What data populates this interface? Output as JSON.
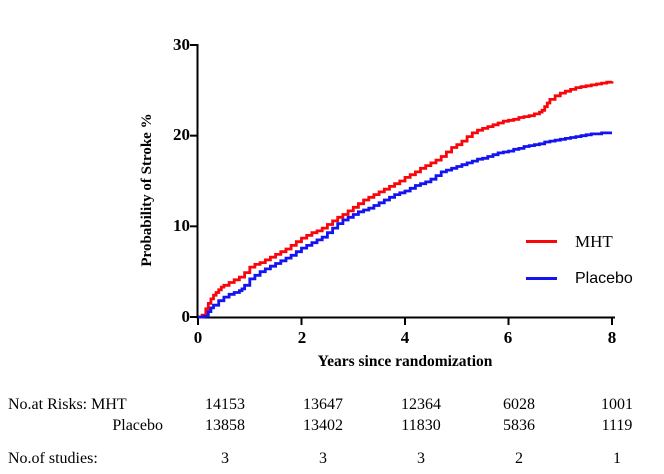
{
  "figure_background": "#FFFFFF",
  "axis_color": "#000000",
  "chart_data": {
    "type": "line",
    "subtype": "kaplan-meier-step",
    "title": "",
    "xlabel": "Years since randomization",
    "ylabel": "Probability of Stroke %",
    "xlim": [
      0,
      8
    ],
    "ylim": [
      0,
      30
    ],
    "grid": false,
    "legend_position": "right-middle",
    "xtick_labels": [
      "0",
      "2",
      "4",
      "6",
      "8"
    ],
    "ytick_labels": [
      "0",
      "10",
      "20",
      "30"
    ],
    "series": [
      {
        "name": "MHT",
        "color": "#FA050A",
        "points": [
          [
            0,
            0
          ],
          [
            0.08,
            0.2
          ],
          [
            0.15,
            0.9
          ],
          [
            0.2,
            1.5
          ],
          [
            0.25,
            2.0
          ],
          [
            0.3,
            2.4
          ],
          [
            0.35,
            2.7
          ],
          [
            0.4,
            3.0
          ],
          [
            0.45,
            3.3
          ],
          [
            0.5,
            3.5
          ],
          [
            0.6,
            3.8
          ],
          [
            0.7,
            4.1
          ],
          [
            0.8,
            4.4
          ],
          [
            0.9,
            4.9
          ],
          [
            1.0,
            5.5
          ],
          [
            1.1,
            5.8
          ],
          [
            1.2,
            6.0
          ],
          [
            1.3,
            6.3
          ],
          [
            1.4,
            6.6
          ],
          [
            1.5,
            6.9
          ],
          [
            1.6,
            7.2
          ],
          [
            1.7,
            7.5
          ],
          [
            1.8,
            7.9
          ],
          [
            1.9,
            8.3
          ],
          [
            2.0,
            8.7
          ],
          [
            2.1,
            9.0
          ],
          [
            2.2,
            9.3
          ],
          [
            2.3,
            9.5
          ],
          [
            2.4,
            9.8
          ],
          [
            2.5,
            10.2
          ],
          [
            2.6,
            10.6
          ],
          [
            2.7,
            11.0
          ],
          [
            2.8,
            11.3
          ],
          [
            2.9,
            11.7
          ],
          [
            3.0,
            12.1
          ],
          [
            3.1,
            12.5
          ],
          [
            3.2,
            12.9
          ],
          [
            3.3,
            13.2
          ],
          [
            3.4,
            13.5
          ],
          [
            3.5,
            13.8
          ],
          [
            3.6,
            14.1
          ],
          [
            3.7,
            14.4
          ],
          [
            3.8,
            14.7
          ],
          [
            3.9,
            15.0
          ],
          [
            4.0,
            15.4
          ],
          [
            4.1,
            15.7
          ],
          [
            4.2,
            16.0
          ],
          [
            4.3,
            16.4
          ],
          [
            4.4,
            16.7
          ],
          [
            4.5,
            17.0
          ],
          [
            4.6,
            17.3
          ],
          [
            4.7,
            17.7
          ],
          [
            4.8,
            18.2
          ],
          [
            4.9,
            18.7
          ],
          [
            5.0,
            19.0
          ],
          [
            5.1,
            19.4
          ],
          [
            5.2,
            19.9
          ],
          [
            5.3,
            20.3
          ],
          [
            5.4,
            20.6
          ],
          [
            5.5,
            20.8
          ],
          [
            5.6,
            21.0
          ],
          [
            5.7,
            21.2
          ],
          [
            5.8,
            21.4
          ],
          [
            5.9,
            21.6
          ],
          [
            6.0,
            21.7
          ],
          [
            6.1,
            21.8
          ],
          [
            6.2,
            22.0
          ],
          [
            6.3,
            22.1
          ],
          [
            6.4,
            22.2
          ],
          [
            6.5,
            22.4
          ],
          [
            6.6,
            22.6
          ],
          [
            6.65,
            22.8
          ],
          [
            6.7,
            23.2
          ],
          [
            6.75,
            23.6
          ],
          [
            6.8,
            24.0
          ],
          [
            6.9,
            24.4
          ],
          [
            7.0,
            24.7
          ],
          [
            7.1,
            24.9
          ],
          [
            7.2,
            25.1
          ],
          [
            7.3,
            25.3
          ],
          [
            7.4,
            25.4
          ],
          [
            7.5,
            25.5
          ],
          [
            7.6,
            25.6
          ],
          [
            7.7,
            25.7
          ],
          [
            7.8,
            25.8
          ],
          [
            7.9,
            25.9
          ],
          [
            8.0,
            26.0
          ]
        ]
      },
      {
        "name": "Placebo",
        "color": "#1414F0",
        "points": [
          [
            0,
            0
          ],
          [
            0.12,
            0.1
          ],
          [
            0.2,
            0.6
          ],
          [
            0.25,
            1.0
          ],
          [
            0.3,
            1.3
          ],
          [
            0.4,
            1.8
          ],
          [
            0.5,
            2.2
          ],
          [
            0.6,
            2.5
          ],
          [
            0.7,
            2.7
          ],
          [
            0.8,
            2.9
          ],
          [
            0.85,
            3.1
          ],
          [
            0.9,
            3.5
          ],
          [
            1.0,
            4.2
          ],
          [
            1.1,
            4.6
          ],
          [
            1.2,
            5.0
          ],
          [
            1.3,
            5.3
          ],
          [
            1.4,
            5.6
          ],
          [
            1.5,
            5.9
          ],
          [
            1.6,
            6.2
          ],
          [
            1.7,
            6.5
          ],
          [
            1.8,
            6.8
          ],
          [
            1.9,
            7.2
          ],
          [
            2.0,
            7.6
          ],
          [
            2.1,
            7.9
          ],
          [
            2.2,
            8.2
          ],
          [
            2.3,
            8.5
          ],
          [
            2.4,
            8.8
          ],
          [
            2.5,
            9.3
          ],
          [
            2.6,
            9.8
          ],
          [
            2.7,
            10.3
          ],
          [
            2.8,
            10.7
          ],
          [
            2.9,
            11.0
          ],
          [
            3.0,
            11.3
          ],
          [
            3.1,
            11.6
          ],
          [
            3.2,
            11.8
          ],
          [
            3.3,
            12.0
          ],
          [
            3.4,
            12.3
          ],
          [
            3.5,
            12.6
          ],
          [
            3.6,
            12.9
          ],
          [
            3.7,
            13.2
          ],
          [
            3.8,
            13.5
          ],
          [
            3.9,
            13.7
          ],
          [
            4.0,
            13.9
          ],
          [
            4.1,
            14.2
          ],
          [
            4.2,
            14.5
          ],
          [
            4.3,
            14.7
          ],
          [
            4.4,
            14.9
          ],
          [
            4.5,
            15.2
          ],
          [
            4.6,
            15.6
          ],
          [
            4.7,
            16.0
          ],
          [
            4.8,
            16.2
          ],
          [
            4.9,
            16.4
          ],
          [
            5.0,
            16.6
          ],
          [
            5.1,
            16.8
          ],
          [
            5.2,
            17.0
          ],
          [
            5.3,
            17.2
          ],
          [
            5.4,
            17.4
          ],
          [
            5.5,
            17.5
          ],
          [
            5.6,
            17.7
          ],
          [
            5.7,
            17.9
          ],
          [
            5.8,
            18.1
          ],
          [
            5.9,
            18.2
          ],
          [
            6.0,
            18.3
          ],
          [
            6.1,
            18.5
          ],
          [
            6.2,
            18.6
          ],
          [
            6.3,
            18.8
          ],
          [
            6.4,
            18.9
          ],
          [
            6.5,
            19.0
          ],
          [
            6.6,
            19.1
          ],
          [
            6.7,
            19.3
          ],
          [
            6.8,
            19.4
          ],
          [
            6.9,
            19.5
          ],
          [
            7.0,
            19.6
          ],
          [
            7.1,
            19.7
          ],
          [
            7.2,
            19.8
          ],
          [
            7.3,
            19.9
          ],
          [
            7.4,
            20.0
          ],
          [
            7.5,
            20.1
          ],
          [
            7.6,
            20.2
          ],
          [
            7.7,
            20.2
          ],
          [
            7.8,
            20.3
          ],
          [
            7.9,
            20.3
          ],
          [
            8.0,
            20.3
          ]
        ]
      }
    ]
  },
  "legend": {
    "items": [
      {
        "label": "MHT",
        "color": "#FA050A"
      },
      {
        "label": "Placebo",
        "color": "#1414F0"
      }
    ]
  },
  "risk_table": {
    "rows": [
      {
        "label": "No.at Risks: MHT",
        "values": [
          "14153",
          "13647",
          "12364",
          "6028",
          "1001"
        ]
      },
      {
        "label": "Placebo",
        "values": [
          "13858",
          "13402",
          "11830",
          "5836",
          "1119"
        ]
      },
      {
        "label": "No.of studies:",
        "values": [
          "3",
          "3",
          "3",
          "2",
          "1"
        ]
      }
    ]
  }
}
